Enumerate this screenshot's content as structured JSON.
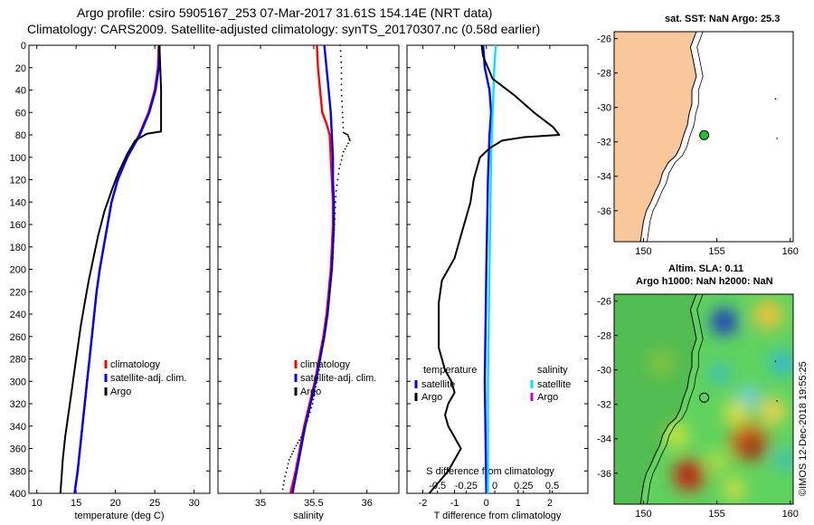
{
  "header": {
    "line1": "Argo profile: csiro 5905167_253 07-Mar-2017 31.61S 154.14E (NRT data)",
    "line2": "Climatology: CARS2009. Satellite-adjusted climatology: synTS_20170307.nc (0.58d earlier)"
  },
  "colors": {
    "clim": "#ff0000",
    "sat": "#0000ff",
    "argo": "#000000",
    "sal_sat": "#00e5ff",
    "sal_argo": "#cc00cc",
    "land": "#f8c79b"
  },
  "chart_data": [
    {
      "id": "temperature",
      "type": "line",
      "xlabel": "temperature (deg C)",
      "xlim": [
        9,
        32
      ],
      "xticks": [
        10,
        15,
        20,
        25,
        30
      ],
      "ylim": [
        400,
        0
      ],
      "yticks": [
        0,
        20,
        40,
        60,
        80,
        100,
        120,
        140,
        160,
        180,
        200,
        220,
        240,
        260,
        280,
        300,
        320,
        340,
        360,
        380,
        400
      ],
      "legend": [
        "climatology",
        "satellite-adj. clim.",
        "Argo"
      ],
      "series": [
        {
          "name": "climatology",
          "color": "clim",
          "points": [
            [
              25.5,
              0
            ],
            [
              25.4,
              20
            ],
            [
              25,
              40
            ],
            [
              24.2,
              60
            ],
            [
              23,
              80
            ],
            [
              21.5,
              100
            ],
            [
              20.3,
              120
            ],
            [
              19.5,
              140
            ],
            [
              19,
              160
            ],
            [
              18.5,
              180
            ],
            [
              18,
              200
            ],
            [
              17.6,
              220
            ],
            [
              17.3,
              240
            ],
            [
              17,
              260
            ],
            [
              16.7,
              280
            ],
            [
              16.4,
              300
            ],
            [
              16.1,
              320
            ],
            [
              15.8,
              340
            ],
            [
              15.5,
              360
            ],
            [
              15.2,
              380
            ],
            [
              14.8,
              400
            ]
          ]
        },
        {
          "name": "satellite-adj. clim.",
          "color": "sat",
          "points": [
            [
              25.6,
              0
            ],
            [
              25.5,
              20
            ],
            [
              25.1,
              40
            ],
            [
              24.3,
              60
            ],
            [
              23.1,
              80
            ],
            [
              21.5,
              100
            ],
            [
              20.3,
              120
            ],
            [
              19.5,
              140
            ],
            [
              19,
              160
            ],
            [
              18.5,
              180
            ],
            [
              18,
              200
            ],
            [
              17.6,
              220
            ],
            [
              17.3,
              240
            ],
            [
              17,
              260
            ],
            [
              16.7,
              280
            ],
            [
              16.4,
              300
            ],
            [
              16.1,
              320
            ],
            [
              15.8,
              340
            ],
            [
              15.5,
              360
            ],
            [
              15.2,
              380
            ],
            [
              14.8,
              400
            ]
          ]
        },
        {
          "name": "Argo",
          "color": "argo",
          "points": [
            [
              25.6,
              0
            ],
            [
              25.7,
              20
            ],
            [
              25.8,
              40
            ],
            [
              25.8,
              60
            ],
            [
              25.8,
              77
            ],
            [
              24,
              79
            ],
            [
              22.5,
              85
            ],
            [
              21.5,
              97
            ],
            [
              20.3,
              115
            ],
            [
              19.5,
              130
            ],
            [
              18.6,
              148
            ],
            [
              17.8,
              170
            ],
            [
              17.2,
              190
            ],
            [
              16.6,
              210
            ],
            [
              16.1,
              230
            ],
            [
              15.6,
              250
            ],
            [
              15.2,
              270
            ],
            [
              14.8,
              290
            ],
            [
              14.4,
              310
            ],
            [
              14,
              330
            ],
            [
              13.6,
              350
            ],
            [
              13.3,
              370
            ],
            [
              13.1,
              390
            ],
            [
              13,
              400
            ]
          ]
        }
      ]
    },
    {
      "id": "salinity",
      "type": "line",
      "xlabel": "salinity",
      "xlim": [
        34.6,
        36.3
      ],
      "xticks": [
        35,
        35.5,
        36
      ],
      "xticklabels": [
        "35",
        "35.5",
        "36"
      ],
      "ylim": [
        400,
        0
      ],
      "legend": [
        "climatology",
        "satellite-adj. clim.",
        "Argo"
      ],
      "series": [
        {
          "name": "climatology",
          "color": "clim",
          "points": [
            [
              35.53,
              0
            ],
            [
              35.54,
              20
            ],
            [
              35.56,
              40
            ],
            [
              35.58,
              60
            ],
            [
              35.62,
              70
            ],
            [
              35.65,
              80
            ],
            [
              35.66,
              100
            ],
            [
              35.67,
              120
            ],
            [
              35.68,
              140
            ],
            [
              35.68,
              160
            ],
            [
              35.67,
              180
            ],
            [
              35.66,
              200
            ],
            [
              35.64,
              220
            ],
            [
              35.62,
              240
            ],
            [
              35.59,
              260
            ],
            [
              35.55,
              280
            ],
            [
              35.51,
              300
            ],
            [
              35.46,
              320
            ],
            [
              35.41,
              340
            ],
            [
              35.37,
              360
            ],
            [
              35.33,
              380
            ],
            [
              35.28,
              400
            ]
          ]
        },
        {
          "name": "satellite-adj. clim.",
          "color": "sat",
          "points": [
            [
              35.6,
              0
            ],
            [
              35.62,
              20
            ],
            [
              35.64,
              40
            ],
            [
              35.66,
              60
            ],
            [
              35.67,
              80
            ],
            [
              35.68,
              100
            ],
            [
              35.68,
              120
            ],
            [
              35.69,
              140
            ],
            [
              35.69,
              160
            ],
            [
              35.68,
              180
            ],
            [
              35.67,
              200
            ],
            [
              35.65,
              220
            ],
            [
              35.63,
              240
            ],
            [
              35.6,
              260
            ],
            [
              35.56,
              280
            ],
            [
              35.52,
              300
            ],
            [
              35.47,
              320
            ],
            [
              35.42,
              340
            ],
            [
              35.38,
              360
            ],
            [
              35.34,
              380
            ],
            [
              35.3,
              400
            ]
          ]
        },
        {
          "name": "Argo",
          "color": "argo",
          "dotted": true,
          "points": [
            [
              35.75,
              0
            ],
            [
              35.76,
              20
            ],
            [
              35.76,
              40
            ],
            [
              35.77,
              60
            ],
            [
              35.78,
              78
            ],
            [
              35.82,
              80
            ],
            [
              35.84,
              85
            ],
            [
              35.78,
              95
            ],
            [
              35.74,
              110
            ],
            [
              35.71,
              130
            ],
            [
              35.7,
              150
            ],
            [
              35.69,
              170
            ],
            [
              35.68,
              190
            ],
            [
              35.66,
              210
            ],
            [
              35.64,
              230
            ],
            [
              35.61,
              250
            ],
            [
              35.58,
              270
            ],
            [
              35.55,
              290
            ],
            [
              35.52,
              305
            ],
            [
              35.49,
              320
            ],
            [
              35.44,
              335
            ],
            [
              35.38,
              350
            ],
            [
              35.32,
              360
            ],
            [
              35.27,
              370
            ],
            [
              35.23,
              385
            ],
            [
              35.2,
              400
            ]
          ]
        }
      ]
    },
    {
      "id": "difference",
      "type": "line",
      "xlabel": "T difference from climatology",
      "xlim": [
        -2.5,
        3.2
      ],
      "xticks": [
        -2,
        -1,
        0,
        1,
        2
      ],
      "ylim": [
        400,
        0
      ],
      "s_axis": {
        "label": "S difference from climatology",
        "ticks": [
          -0.5,
          -0.25,
          0,
          0.25,
          0.5
        ],
        "ticklabels": [
          "-0.5",
          "-0.25",
          "0",
          "0.25",
          "0.5"
        ]
      },
      "legend_titles": [
        "temperature",
        "salinity"
      ],
      "legend_left": [
        "satellite",
        "Argo"
      ],
      "legend_right": [
        "satellite",
        "Argo"
      ],
      "series": [
        {
          "name": "temperature satellite",
          "color": "sat",
          "points": [
            [
              -0.1,
              0
            ],
            [
              -0.05,
              20
            ],
            [
              0.1,
              40
            ],
            [
              0.15,
              60
            ],
            [
              0.1,
              80
            ],
            [
              0.05,
              120
            ],
            [
              0,
              200
            ],
            [
              -0.05,
              300
            ],
            [
              0,
              400
            ]
          ]
        },
        {
          "name": "salinity satellite",
          "color": "sal_sat",
          "points": [
            [
              0.3,
              0
            ],
            [
              0.25,
              20
            ],
            [
              0.2,
              60
            ],
            [
              0.15,
              100
            ],
            [
              0.1,
              200
            ],
            [
              0.05,
              300
            ],
            [
              0.05,
              400
            ]
          ]
        },
        {
          "name": "Argo",
          "color": "argo",
          "points": [
            [
              -0.15,
              0
            ],
            [
              -0.1,
              10
            ],
            [
              0.2,
              30
            ],
            [
              0.9,
              45
            ],
            [
              1.5,
              60
            ],
            [
              2.1,
              73
            ],
            [
              2.3,
              80
            ],
            [
              1.2,
              82
            ],
            [
              0.5,
              85
            ],
            [
              0.1,
              92
            ],
            [
              -0.2,
              100
            ],
            [
              -0.4,
              120
            ],
            [
              -0.5,
              140
            ],
            [
              -0.6,
              150
            ],
            [
              -0.8,
              170
            ],
            [
              -1,
              190
            ],
            [
              -1.2,
              200
            ],
            [
              -1.4,
              210
            ],
            [
              -1.5,
              230
            ],
            [
              -1.5,
              250
            ],
            [
              -1.5,
              270
            ],
            [
              -1.3,
              290
            ],
            [
              -1.1,
              300
            ],
            [
              -1,
              310
            ],
            [
              -1.2,
              320
            ],
            [
              -1.3,
              330
            ],
            [
              -1.2,
              340
            ],
            [
              -1,
              350
            ],
            [
              -0.8,
              360
            ],
            [
              -1,
              370
            ],
            [
              -1.2,
              380
            ],
            [
              -1.5,
              390
            ],
            [
              -1.8,
              400
            ]
          ]
        }
      ]
    }
  ],
  "map_sst": {
    "title": "sat. SST: NaN Argo: 25.3",
    "xticks": [
      150,
      155,
      160
    ],
    "yticks": [
      -26,
      -28,
      -30,
      -32,
      -34,
      -36
    ],
    "lon_range": [
      148,
      160.2
    ],
    "lat_range": [
      -37.8,
      -25.6
    ],
    "argo_position": {
      "lon": 154.14,
      "lat": -31.61
    }
  },
  "map_sla": {
    "title1": "Altim. SLA: 0.11",
    "title2": "Argo h1000: NaN h2000: NaN",
    "xticks": [
      150,
      155,
      160
    ],
    "yticks": [
      -26,
      -28,
      -30,
      -32,
      -34,
      -36
    ],
    "lon_range": [
      148,
      160.2
    ],
    "lat_range": [
      -37.8,
      -25.6
    ],
    "argo_position": {
      "lon": 154.14,
      "lat": -31.61
    }
  },
  "footer": {
    "stamp": "©IMOS 12-Dec-2018 19:55:25"
  }
}
